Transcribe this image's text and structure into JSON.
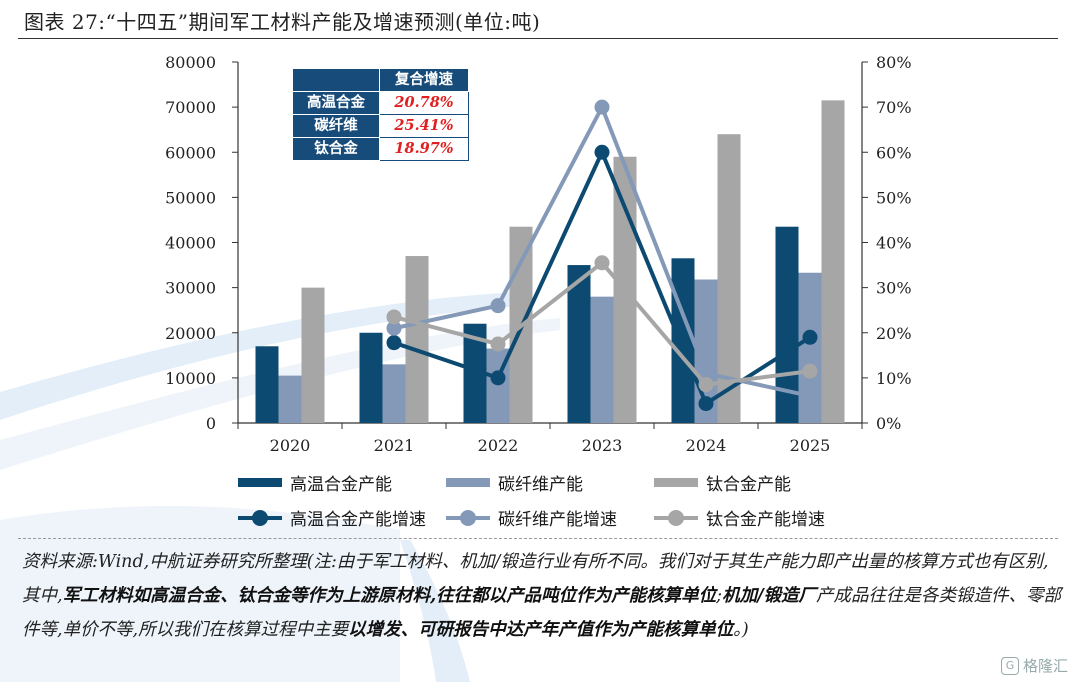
{
  "header": {
    "title": "图表 27:“十四五”期间军工材料产能及增速预测(单位:吨)"
  },
  "growth_table": {
    "header": "复合增速",
    "rows": [
      {
        "label": "高温合金",
        "value": "20.78%"
      },
      {
        "label": "碳纤维",
        "value": "25.41%"
      },
      {
        "label": "钛合金",
        "value": "18.97%"
      }
    ]
  },
  "legend": {
    "items": [
      {
        "label": "高温合金产能",
        "color": "#0d4a72",
        "kind": "bar"
      },
      {
        "label": "碳纤维产能",
        "color": "#8499b8",
        "kind": "bar"
      },
      {
        "label": "钛合金产能",
        "color": "#a6a6a6",
        "kind": "bar"
      },
      {
        "label": "高温合金产能增速",
        "color": "#0d4a72",
        "kind": "line"
      },
      {
        "label": "碳纤维产能增速",
        "color": "#8499b8",
        "kind": "line"
      },
      {
        "label": "钛合金产能增速",
        "color": "#a6a6a6",
        "kind": "line"
      }
    ]
  },
  "chart_data": {
    "type": "bar",
    "categories": [
      "2020",
      "2021",
      "2022",
      "2023",
      "2024",
      "2025"
    ],
    "ylim": [
      0,
      80000
    ],
    "y2lim": [
      0,
      0.8
    ],
    "yticks": [
      "0",
      "10000",
      "20000",
      "30000",
      "40000",
      "50000",
      "60000",
      "70000",
      "80000"
    ],
    "y2ticks": [
      "0%",
      "10%",
      "20%",
      "30%",
      "40%",
      "50%",
      "60%",
      "70%",
      "80%"
    ],
    "series": [
      {
        "name": "高温合金产能",
        "type": "bar",
        "axis": "left",
        "color": "#0d4a72",
        "values": [
          17000,
          20000,
          22000,
          35000,
          36500,
          43500
        ]
      },
      {
        "name": "碳纤维产能",
        "type": "bar",
        "axis": "left",
        "color": "#8499b8",
        "values": [
          10500,
          13000,
          16500,
          28000,
          31800,
          33300
        ]
      },
      {
        "name": "钛合金产能",
        "type": "bar",
        "axis": "left",
        "color": "#a6a6a6",
        "values": [
          30000,
          37000,
          43500,
          59000,
          64000,
          71500
        ]
      },
      {
        "name": "高温合金产能增速",
        "type": "line",
        "axis": "right",
        "color": "#0d4a72",
        "values": [
          null,
          0.178,
          0.1,
          0.6,
          0.043,
          0.19
        ]
      },
      {
        "name": "碳纤维产能增速",
        "type": "line",
        "axis": "right",
        "color": "#8499b8",
        "values": [
          null,
          0.21,
          0.26,
          0.7,
          0.11,
          0.06
        ]
      },
      {
        "name": "钛合金产能增速",
        "type": "line",
        "axis": "right",
        "color": "#a6a6a6",
        "values": [
          null,
          0.235,
          0.175,
          0.355,
          0.085,
          0.115
        ]
      }
    ]
  },
  "footer": {
    "p1": "资料来源:Wind,中航证券研究所整理(注:由于军工材料、机加/锻造行业有所不同。我们对于其生产能力即产出量的核算方式也有区别,其中,",
    "b1": "军工材料如高温合金、钛合金等作为上游原材料,往往都以产品吨位作为产能核算单位",
    "p2": ";",
    "b2": "机加/锻造厂",
    "p3": "产成品往往是各类锻造件、零部件等,单价不等,所以我们在核算过程中主要",
    "b3": "以增发、可研报告中达产年产值作为产能核算单位",
    "p4": "。)"
  },
  "watermark": {
    "icon": "G",
    "text": "格隆汇"
  }
}
